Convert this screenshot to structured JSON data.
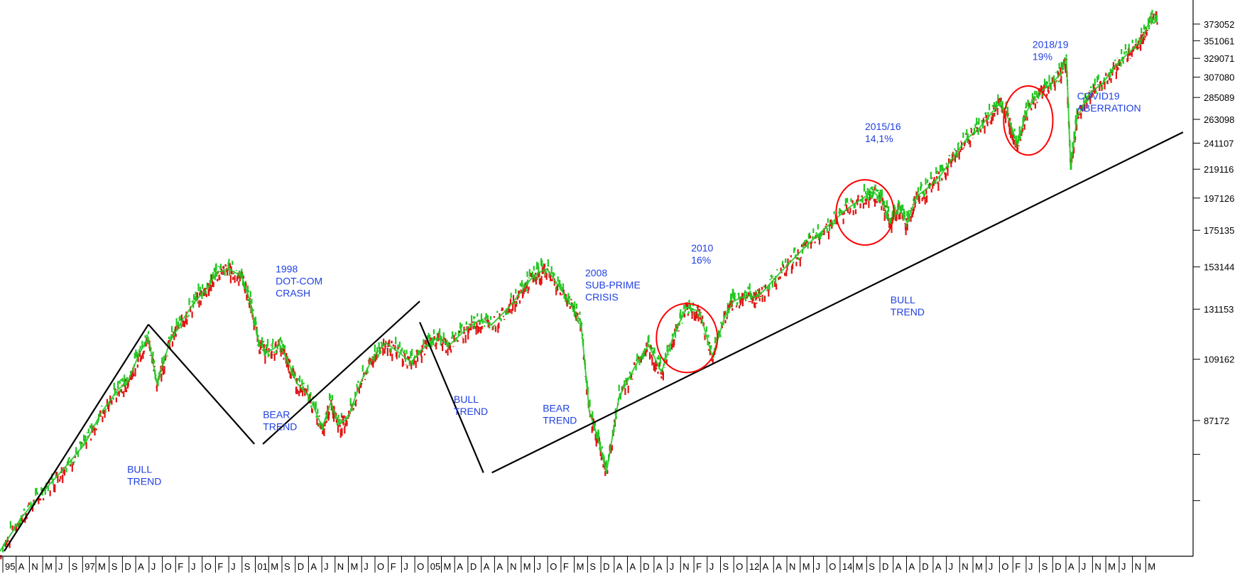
{
  "chart_data": {
    "type": "line",
    "style": "candlestick-like price trace (green up / red down)",
    "log_scale": true,
    "grid": false,
    "legend": "none",
    "colors": {
      "up": "#22c722",
      "down": "#e01414",
      "annotation": "#1f3fe0",
      "circle": "#ff0000",
      "trendline": "#000000",
      "axis": "#000000"
    },
    "ylim": [
      53000,
      395000
    ],
    "y_ticks": [
      87172,
      109162,
      131153,
      153144,
      175135,
      197126,
      219116,
      241107,
      263098,
      285089,
      307080,
      329071,
      351061,
      373052
    ],
    "y_tick_labels": [
      "87172",
      "109162",
      "131153",
      "153144",
      "175135",
      "197126",
      "219116",
      "241107",
      "263098",
      "285089",
      "307080",
      "329071",
      "351061",
      "373052"
    ],
    "y_extra_ticks": [
      65000,
      77000
    ],
    "xlim": [
      1995.0,
      2022.3
    ],
    "x_tick_labels": [
      "95",
      "A",
      "N",
      "M",
      "J",
      "S",
      "97",
      "M",
      "S",
      "D",
      "A",
      "J",
      "O",
      "F",
      "J",
      "O",
      "F",
      "J",
      "S",
      "01",
      "M",
      "S",
      "D",
      "A",
      "J",
      "N",
      "M",
      "J",
      "O",
      "F",
      "J",
      "O",
      "05",
      "M",
      "A",
      "D",
      "A",
      "A",
      "N",
      "M",
      "J",
      "O",
      "F",
      "M",
      "S",
      "D",
      "A",
      "A",
      "D",
      "A",
      "J",
      "N",
      "F",
      "J",
      "S",
      "O",
      "12",
      "A",
      "A",
      "N",
      "M",
      "J",
      "O",
      "14",
      "M",
      "S",
      "D",
      "A",
      "A",
      "D",
      "A",
      "J",
      "N",
      "M",
      "J",
      "O",
      "F",
      "J",
      "S",
      "D",
      "A",
      "J",
      "N",
      "M",
      "J",
      "N",
      "M"
    ],
    "series": [
      {
        "x": [
          1995.0,
          1995.5,
          1996.0,
          1996.5,
          1997.0,
          1997.4,
          1997.8,
          1998.0,
          1998.3,
          1998.5,
          1998.7,
          1999.0,
          1999.3,
          1999.6,
          1999.9,
          2000.1,
          2000.4,
          2000.7,
          2000.9,
          2001.1,
          2001.3,
          2001.6,
          2001.8,
          2002.0,
          2002.3,
          2002.6,
          2002.8,
          2003.0,
          2003.2,
          2003.5,
          2003.8,
          2004.1,
          2004.4,
          2004.7,
          2005.0,
          2005.3,
          2005.6,
          2006.0,
          2006.3,
          2006.6,
          2007.0,
          2007.3,
          2007.5,
          2007.7,
          2007.9,
          2008.2,
          2008.5,
          2008.7,
          2008.9,
          2009.1,
          2009.3,
          2009.6,
          2010.0,
          2010.3,
          2010.6,
          2010.9,
          2011.2,
          2011.5,
          2011.8,
          2012.1,
          2012.3,
          2012.6,
          2012.8,
          2013.0,
          2013.4,
          2013.8,
          2014.2,
          2014.6,
          2015.0,
          2015.4,
          2015.6,
          2015.8,
          2016.0,
          2016.2,
          2016.4,
          2016.6,
          2016.9,
          2017.2,
          2017.5,
          2017.8,
          2018.1,
          2018.4,
          2018.6,
          2018.8,
          2019.0,
          2019.2,
          2019.5,
          2019.8,
          2020.0,
          2020.15,
          2020.25,
          2020.4,
          2020.7,
          2021.0,
          2021.3,
          2021.6,
          2021.9,
          2022.1,
          2022.3
        ],
        "values": [
          54000,
          61000,
          67000,
          73000,
          80000,
          90000,
          98000,
          100000,
          112000,
          118000,
          100000,
          116000,
          126000,
          135000,
          142000,
          150000,
          152000,
          148000,
          135000,
          116000,
          112000,
          115000,
          108000,
          100000,
          95000,
          85000,
          93000,
          86000,
          88000,
          100000,
          110000,
          116000,
          112000,
          108000,
          114000,
          118000,
          115000,
          122000,
          126000,
          124000,
          132000,
          140000,
          146000,
          150000,
          152000,
          142000,
          132000,
          125000,
          90000,
          82000,
          72000,
          95000,
          107000,
          115000,
          104000,
          120000,
          132000,
          130000,
          110000,
          128000,
          135000,
          138000,
          137000,
          140000,
          150000,
          160000,
          170000,
          180000,
          190000,
          198000,
          202000,
          195000,
          180000,
          190000,
          180000,
          198000,
          205000,
          215000,
          230000,
          245000,
          255000,
          270000,
          280000,
          262000,
          240000,
          270000,
          290000,
          300000,
          310000,
          330000,
          220000,
          265000,
          290000,
          300000,
          320000,
          335000,
          350000,
          375000,
          385000
        ]
      }
    ],
    "annotations": [
      {
        "lines": [
          "BULL",
          "TREND"
        ],
        "x": 1998.0,
        "y": 72000
      },
      {
        "lines": [
          "1998",
          "DOT-COM",
          "CRASH"
        ],
        "x": 2001.5,
        "y": 150000
      },
      {
        "lines": [
          "BEAR",
          "TREND"
        ],
        "x": 2001.2,
        "y": 88000
      },
      {
        "lines": [
          "BULL",
          "TREND"
        ],
        "x": 2005.7,
        "y": 93000
      },
      {
        "lines": [
          "BEAR",
          "TREND"
        ],
        "x": 2007.8,
        "y": 90000
      },
      {
        "lines": [
          "2008",
          "SUB-PRIME",
          "CRISIS"
        ],
        "x": 2008.8,
        "y": 148000
      },
      {
        "lines": [
          "2010",
          "16%"
        ],
        "x": 2011.3,
        "y": 162000
      },
      {
        "lines": [
          "BULL",
          "TREND"
        ],
        "x": 2016.0,
        "y": 134000
      },
      {
        "lines": [
          "2015/16",
          "14,1%"
        ],
        "x": 2015.4,
        "y": 253000
      },
      {
        "lines": [
          "2018/19",
          "19%"
        ],
        "x": 2019.35,
        "y": 342000
      },
      {
        "lines": [
          "COVID19",
          "ABERRATION"
        ],
        "x": 2020.4,
        "y": 283000
      }
    ],
    "trend_lines": [
      {
        "from": [
          1995.1,
          54000
        ],
        "to": [
          1998.5,
          124000
        ]
      },
      {
        "from": [
          1998.5,
          124000
        ],
        "to": [
          2001.0,
          80000
        ]
      },
      {
        "from": [
          2001.2,
          80000
        ],
        "to": [
          2004.9,
          135000
        ]
      },
      {
        "from": [
          2004.9,
          125000
        ],
        "to": [
          2006.4,
          72000
        ]
      },
      {
        "from": [
          2006.6,
          72000
        ],
        "to": [
          2022.9,
          251000
        ]
      }
    ],
    "circles": [
      {
        "cx": 2011.2,
        "cy": 118000,
        "rx": 0.72,
        "ry_log": 0.055
      },
      {
        "cx": 2015.4,
        "cy": 187000,
        "rx": 0.68,
        "ry_log": 0.052
      },
      {
        "cx": 2019.25,
        "cy": 262000,
        "rx": 0.58,
        "ry_log": 0.055
      }
    ]
  }
}
